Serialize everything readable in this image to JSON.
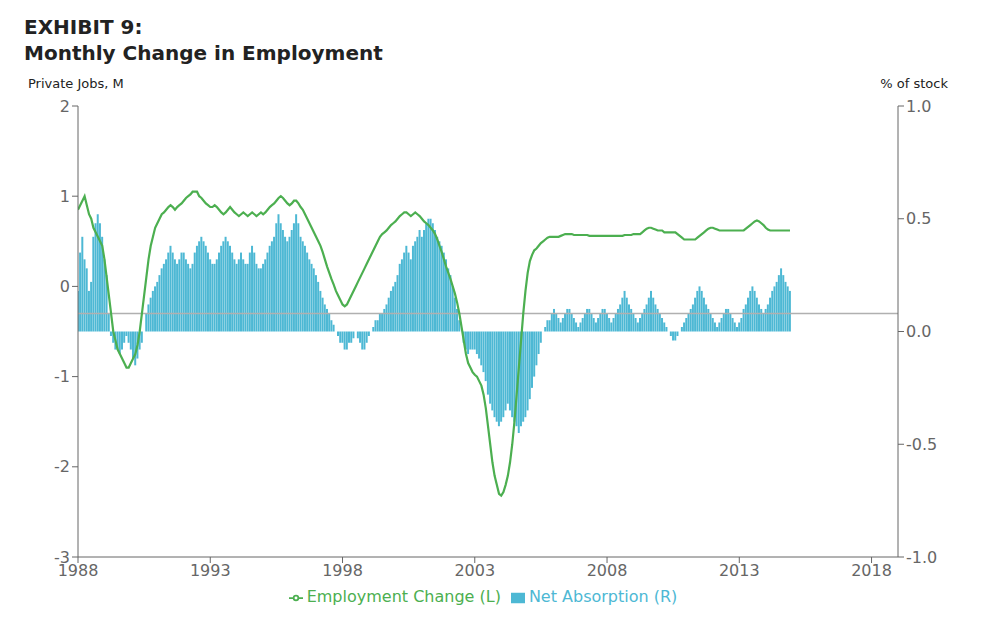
{
  "chart_data": {
    "type": "combo",
    "title": "EXHIBIT 9:",
    "subtitle": "Monthly Change in Employment",
    "ylabel": "Private Jobs, M",
    "y2label": "% of stock",
    "grid": false,
    "legend": "bottom",
    "hline": -0.3,
    "xlim": [
      1988,
      2019
    ],
    "xticks": [
      1988,
      1993,
      1998,
      2003,
      2008,
      2013,
      2018
    ],
    "ylim": [
      -3.0,
      2.0
    ],
    "yticks": [
      -3,
      -2,
      -1,
      0,
      1,
      2
    ],
    "y2lim": [
      -1.0,
      1.0
    ],
    "y2ticks": [
      {
        "value": -1.0,
        "label": "-1.0"
      },
      -0.5,
      {
        "value": 0.0,
        "label": "0.0"
      },
      0.5,
      {
        "value": 1.0,
        "label": "1.0"
      }
    ],
    "x": [
      1988,
      1988.0833,
      1988.1667,
      1988.25,
      1988.3333,
      1988.4167,
      1988.5,
      1988.5833,
      1988.6667,
      1988.75,
      1988.8333,
      1988.9167,
      1989,
      1989.0833,
      1989.1667,
      1989.25,
      1989.3333,
      1989.4167,
      1989.5,
      1989.5833,
      1989.6667,
      1989.75,
      1989.8333,
      1989.9167,
      1990,
      1990.0833,
      1990.1667,
      1990.25,
      1990.3333,
      1990.4167,
      1990.5,
      1990.5833,
      1990.6667,
      1990.75,
      1990.8333,
      1990.9167,
      1991,
      1991.0833,
      1991.1667,
      1991.25,
      1991.3333,
      1991.4167,
      1991.5,
      1991.5833,
      1991.6667,
      1991.75,
      1991.8333,
      1991.9167,
      1992,
      1992.0833,
      1992.1667,
      1992.25,
      1992.3333,
      1992.4167,
      1992.5,
      1992.5833,
      1992.6667,
      1992.75,
      1992.8333,
      1992.9167,
      1993,
      1993.0833,
      1993.1667,
      1993.25,
      1993.3333,
      1993.4167,
      1993.5,
      1993.5833,
      1993.6667,
      1993.75,
      1993.8333,
      1993.9167,
      1994,
      1994.0833,
      1994.1667,
      1994.25,
      1994.3333,
      1994.4167,
      1994.5,
      1994.5833,
      1994.6667,
      1994.75,
      1994.8333,
      1994.9167,
      1995,
      1995.0833,
      1995.1667,
      1995.25,
      1995.3333,
      1995.4167,
      1995.5,
      1995.5833,
      1995.6667,
      1995.75,
      1995.8333,
      1995.9167,
      1996,
      1996.0833,
      1996.1667,
      1996.25,
      1996.3333,
      1996.4167,
      1996.5,
      1996.5833,
      1996.6667,
      1996.75,
      1996.8333,
      1996.9167,
      1997,
      1997.0833,
      1997.1667,
      1997.25,
      1997.3333,
      1997.4167,
      1997.5,
      1997.5833,
      1997.6667,
      1997.75,
      1997.8333,
      1997.9167,
      1998,
      1998.0833,
      1998.1667,
      1998.25,
      1998.3333,
      1998.4167,
      1998.5,
      1998.5833,
      1998.6667,
      1998.75,
      1998.8333,
      1998.9167,
      1999,
      1999.0833,
      1999.1667,
      1999.25,
      1999.3333,
      1999.4167,
      1999.5,
      1999.5833,
      1999.6667,
      1999.75,
      1999.8333,
      1999.9167,
      2000,
      2000.0833,
      2000.1667,
      2000.25,
      2000.3333,
      2000.4167,
      2000.5,
      2000.5833,
      2000.6667,
      2000.75,
      2000.8333,
      2000.9167,
      2001,
      2001.0833,
      2001.1667,
      2001.25,
      2001.3333,
      2001.4167,
      2001.5,
      2001.5833,
      2001.6667,
      2001.75,
      2001.8333,
      2001.9167,
      2002,
      2002.0833,
      2002.1667,
      2002.25,
      2002.3333,
      2002.4167,
      2002.5,
      2002.5833,
      2002.6667,
      2002.75,
      2002.8333,
      2002.9167,
      2003,
      2003.0833,
      2003.1667,
      2003.25,
      2003.3333,
      2003.4167,
      2003.5,
      2003.5833,
      2003.6667,
      2003.75,
      2003.8333,
      2003.9167,
      2004,
      2004.0833,
      2004.1667,
      2004.25,
      2004.3333,
      2004.4167,
      2004.5,
      2004.5833,
      2004.6667,
      2004.75,
      2004.8333,
      2004.9167,
      2005,
      2005.0833,
      2005.1667,
      2005.25,
      2005.3333,
      2005.4167,
      2005.5,
      2005.5833,
      2005.6667,
      2005.75,
      2005.8333,
      2005.9167,
      2006,
      2006.0833,
      2006.1667,
      2006.25,
      2006.3333,
      2006.4167,
      2006.5,
      2006.5833,
      2006.6667,
      2006.75,
      2006.8333,
      2006.9167,
      2007,
      2007.0833,
      2007.1667,
      2007.25,
      2007.3333,
      2007.4167,
      2007.5,
      2007.5833,
      2007.6667,
      2007.75,
      2007.8333,
      2007.9167,
      2008,
      2008.0833,
      2008.1667,
      2008.25,
      2008.3333,
      2008.4167,
      2008.5,
      2008.5833,
      2008.6667,
      2008.75,
      2008.8333,
      2008.9167,
      2009,
      2009.0833,
      2009.1667,
      2009.25,
      2009.3333,
      2009.4167,
      2009.5,
      2009.5833,
      2009.6667,
      2009.75,
      2009.8333,
      2009.9167,
      2010,
      2010.0833,
      2010.1667,
      2010.25,
      2010.3333,
      2010.4167,
      2010.5,
      2010.5833,
      2010.6667,
      2010.75,
      2010.8333,
      2010.9167,
      2011,
      2011.0833,
      2011.1667,
      2011.25,
      2011.3333,
      2011.4167,
      2011.5,
      2011.5833,
      2011.6667,
      2011.75,
      2011.8333,
      2011.9167,
      2012,
      2012.0833,
      2012.1667,
      2012.25,
      2012.3333,
      2012.4167,
      2012.5,
      2012.5833,
      2012.6667,
      2012.75,
      2012.8333,
      2012.9167,
      2013,
      2013.0833,
      2013.1667,
      2013.25,
      2013.3333,
      2013.4167,
      2013.5,
      2013.5833,
      2013.6667,
      2013.75,
      2013.8333,
      2013.9167,
      2014,
      2014.0833,
      2014.1667,
      2014.25,
      2014.3333,
      2014.4167,
      2014.5,
      2014.5833,
      2014.6667,
      2014.75,
      2014.8333,
      2014.9167
    ],
    "series": [
      {
        "name": "Net Absorption (R)",
        "type": "bar",
        "color": "#4DB8D4",
        "axis": "y2",
        "values": [
          0.18,
          0.35,
          0.42,
          0.32,
          0.28,
          0.18,
          0.22,
          0.42,
          0.48,
          0.52,
          0.48,
          0.42,
          0.32,
          0.25,
          0.08,
          -0.02,
          -0.05,
          -0.08,
          -0.08,
          -0.1,
          -0.08,
          -0.05,
          -0.02,
          -0.05,
          -0.08,
          -0.12,
          -0.15,
          -0.12,
          -0.08,
          -0.05,
          0.0,
          0.08,
          0.12,
          0.15,
          0.18,
          0.2,
          0.22,
          0.25,
          0.28,
          0.3,
          0.32,
          0.35,
          0.38,
          0.35,
          0.32,
          0.3,
          0.32,
          0.35,
          0.35,
          0.32,
          0.3,
          0.28,
          0.3,
          0.35,
          0.38,
          0.4,
          0.42,
          0.4,
          0.38,
          0.35,
          0.32,
          0.3,
          0.3,
          0.32,
          0.35,
          0.38,
          0.4,
          0.42,
          0.4,
          0.38,
          0.35,
          0.32,
          0.3,
          0.32,
          0.35,
          0.32,
          0.3,
          0.3,
          0.35,
          0.38,
          0.35,
          0.3,
          0.28,
          0.28,
          0.3,
          0.32,
          0.35,
          0.38,
          0.4,
          0.42,
          0.48,
          0.52,
          0.48,
          0.45,
          0.42,
          0.4,
          0.42,
          0.45,
          0.48,
          0.52,
          0.48,
          0.42,
          0.4,
          0.38,
          0.35,
          0.32,
          0.3,
          0.28,
          0.25,
          0.22,
          0.18,
          0.15,
          0.12,
          0.1,
          0.08,
          0.05,
          0.03,
          0.0,
          -0.02,
          -0.05,
          -0.05,
          -0.08,
          -0.08,
          -0.05,
          -0.05,
          -0.03,
          0.0,
          -0.03,
          -0.05,
          -0.08,
          -0.08,
          -0.05,
          -0.02,
          0.0,
          0.02,
          0.05,
          0.05,
          0.08,
          0.08,
          0.1,
          0.12,
          0.15,
          0.18,
          0.2,
          0.22,
          0.25,
          0.3,
          0.32,
          0.35,
          0.38,
          0.35,
          0.32,
          0.38,
          0.4,
          0.42,
          0.45,
          0.42,
          0.45,
          0.48,
          0.5,
          0.5,
          0.48,
          0.45,
          0.42,
          0.4,
          0.38,
          0.35,
          0.32,
          0.28,
          0.25,
          0.2,
          0.15,
          0.1,
          0.05,
          0.0,
          -0.05,
          -0.08,
          -0.1,
          -0.08,
          -0.08,
          -0.08,
          -0.1,
          -0.12,
          -0.15,
          -0.18,
          -0.22,
          -0.28,
          -0.32,
          -0.35,
          -0.38,
          -0.4,
          -0.42,
          -0.4,
          -0.38,
          -0.35,
          -0.32,
          -0.35,
          -0.38,
          -0.4,
          -0.42,
          -0.45,
          -0.42,
          -0.4,
          -0.38,
          -0.35,
          -0.3,
          -0.25,
          -0.2,
          -0.15,
          -0.1,
          -0.05,
          0.0,
          0.02,
          0.05,
          0.05,
          0.08,
          0.1,
          0.08,
          0.06,
          0.04,
          0.06,
          0.08,
          0.1,
          0.1,
          0.08,
          0.06,
          0.04,
          0.02,
          0.04,
          0.06,
          0.08,
          0.1,
          0.1,
          0.08,
          0.06,
          0.04,
          0.06,
          0.08,
          0.1,
          0.1,
          0.08,
          0.06,
          0.04,
          0.06,
          0.08,
          0.1,
          0.12,
          0.15,
          0.18,
          0.15,
          0.12,
          0.1,
          0.08,
          0.06,
          0.04,
          0.06,
          0.08,
          0.1,
          0.12,
          0.15,
          0.18,
          0.15,
          0.12,
          0.1,
          0.08,
          0.06,
          0.04,
          0.02,
          0.0,
          -0.02,
          -0.04,
          -0.04,
          -0.02,
          0.0,
          0.02,
          0.04,
          0.06,
          0.08,
          0.1,
          0.12,
          0.15,
          0.18,
          0.2,
          0.18,
          0.15,
          0.12,
          0.1,
          0.08,
          0.06,
          0.04,
          0.02,
          0.04,
          0.06,
          0.08,
          0.1,
          0.1,
          0.08,
          0.06,
          0.04,
          0.02,
          0.04,
          0.06,
          0.1,
          0.12,
          0.15,
          0.18,
          0.2,
          0.18,
          0.15,
          0.12,
          0.1,
          0.08,
          0.1,
          0.12,
          0.15,
          0.18,
          0.2,
          0.22,
          0.25,
          0.28,
          0.25,
          0.22,
          0.2,
          0.18
        ]
      },
      {
        "name": "Employment Change (L)",
        "type": "line",
        "color": "#4CAF50",
        "values": [
          0.85,
          0.9,
          0.95,
          1.0,
          0.9,
          0.8,
          0.75,
          0.65,
          0.6,
          0.55,
          0.5,
          0.45,
          0.3,
          0.1,
          -0.1,
          -0.3,
          -0.5,
          -0.6,
          -0.7,
          -0.75,
          -0.8,
          -0.85,
          -0.9,
          -0.9,
          -0.85,
          -0.8,
          -0.75,
          -0.65,
          -0.5,
          -0.3,
          -0.1,
          0.1,
          0.3,
          0.45,
          0.55,
          0.65,
          0.7,
          0.75,
          0.8,
          0.82,
          0.85,
          0.88,
          0.9,
          0.88,
          0.85,
          0.88,
          0.9,
          0.92,
          0.95,
          0.98,
          1.0,
          1.02,
          1.05,
          1.05,
          1.05,
          1.0,
          0.98,
          0.95,
          0.92,
          0.9,
          0.88,
          0.88,
          0.9,
          0.88,
          0.85,
          0.82,
          0.8,
          0.82,
          0.85,
          0.88,
          0.85,
          0.82,
          0.8,
          0.78,
          0.8,
          0.82,
          0.8,
          0.78,
          0.8,
          0.82,
          0.8,
          0.78,
          0.8,
          0.82,
          0.8,
          0.82,
          0.85,
          0.88,
          0.9,
          0.92,
          0.95,
          0.98,
          1.0,
          0.98,
          0.95,
          0.92,
          0.9,
          0.92,
          0.95,
          0.95,
          0.92,
          0.88,
          0.85,
          0.8,
          0.75,
          0.7,
          0.65,
          0.6,
          0.55,
          0.5,
          0.45,
          0.38,
          0.3,
          0.22,
          0.15,
          0.08,
          0.02,
          -0.05,
          -0.1,
          -0.15,
          -0.2,
          -0.22,
          -0.2,
          -0.15,
          -0.1,
          -0.05,
          0.0,
          0.05,
          0.1,
          0.15,
          0.2,
          0.25,
          0.3,
          0.35,
          0.4,
          0.45,
          0.5,
          0.55,
          0.58,
          0.6,
          0.62,
          0.65,
          0.68,
          0.7,
          0.72,
          0.75,
          0.78,
          0.8,
          0.82,
          0.82,
          0.8,
          0.78,
          0.8,
          0.82,
          0.8,
          0.78,
          0.75,
          0.72,
          0.7,
          0.68,
          0.65,
          0.62,
          0.58,
          0.52,
          0.45,
          0.38,
          0.3,
          0.22,
          0.15,
          0.08,
          0.0,
          -0.08,
          -0.18,
          -0.3,
          -0.45,
          -0.6,
          -0.75,
          -0.85,
          -0.9,
          -0.95,
          -0.98,
          -1.0,
          -1.05,
          -1.1,
          -1.2,
          -1.35,
          -1.55,
          -1.75,
          -1.95,
          -2.1,
          -2.2,
          -2.3,
          -2.32,
          -2.28,
          -2.2,
          -2.1,
          -1.95,
          -1.75,
          -1.5,
          -1.2,
          -0.9,
          -0.6,
          -0.3,
          -0.05,
          0.15,
          0.28,
          0.35,
          0.4,
          0.42,
          0.45,
          0.48,
          0.5,
          0.52,
          0.54,
          0.55,
          0.55,
          0.55,
          0.55,
          0.55,
          0.56,
          0.57,
          0.58,
          0.58,
          0.58,
          0.58,
          0.57,
          0.57,
          0.57,
          0.57,
          0.57,
          0.57,
          0.57,
          0.56,
          0.56,
          0.56,
          0.56,
          0.56,
          0.56,
          0.56,
          0.56,
          0.56,
          0.56,
          0.56,
          0.56,
          0.56,
          0.56,
          0.56,
          0.56,
          0.57,
          0.57,
          0.57,
          0.57,
          0.58,
          0.58,
          0.58,
          0.58,
          0.6,
          0.62,
          0.64,
          0.65,
          0.65,
          0.64,
          0.63,
          0.62,
          0.62,
          0.62,
          0.6,
          0.6,
          0.6,
          0.6,
          0.6,
          0.6,
          0.58,
          0.56,
          0.54,
          0.52,
          0.52,
          0.52,
          0.52,
          0.52,
          0.52,
          0.54,
          0.56,
          0.58,
          0.6,
          0.62,
          0.64,
          0.65,
          0.65,
          0.64,
          0.63,
          0.62,
          0.62,
          0.62,
          0.62,
          0.62,
          0.62,
          0.62,
          0.62,
          0.62,
          0.62,
          0.62,
          0.62,
          0.64,
          0.66,
          0.68,
          0.7,
          0.72,
          0.73,
          0.72,
          0.7,
          0.68,
          0.65,
          0.63,
          0.62,
          0.62,
          0.62,
          0.62,
          0.62,
          0.62,
          0.62,
          0.62,
          0.62,
          0.62
        ]
      }
    ]
  }
}
